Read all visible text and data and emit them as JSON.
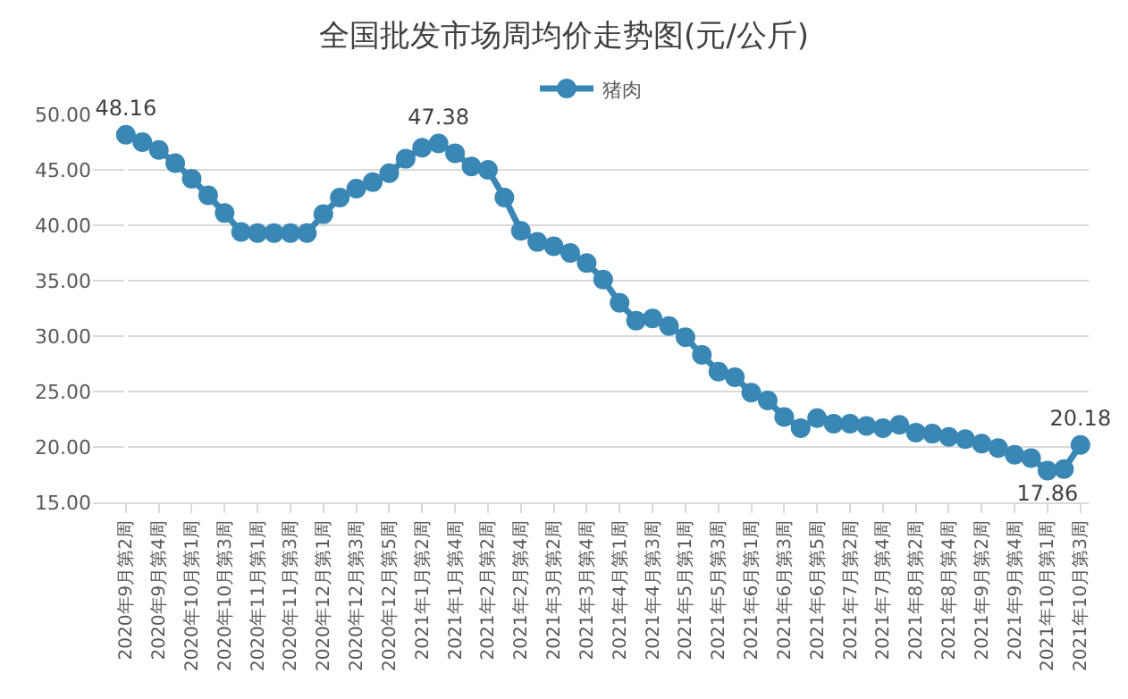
{
  "chart_data": {
    "type": "line",
    "title": "全国批发市场周均价走势图(元/公斤)",
    "categories": [
      "2020年9月第2周",
      null,
      "2020年9月第4周",
      null,
      "2020年10月第1周",
      null,
      "2020年10月第3周",
      null,
      "2020年11月第1周",
      null,
      "2020年11月第3周",
      null,
      "2020年12月第1周",
      null,
      "2020年12月第3周",
      null,
      "2020年12月第5周",
      null,
      "2021年1月第2周",
      null,
      "2021年1月第4周",
      null,
      "2021年2月第2周",
      null,
      "2021年2月第4周",
      null,
      "2021年3月第2周",
      null,
      "2021年3月第4周",
      null,
      "2021年4月第1周",
      null,
      "2021年4月第3周",
      null,
      "2021年5月第1周",
      null,
      "2021年5月第3周",
      null,
      "2021年6月第1周",
      null,
      "2021年6月第3周",
      null,
      "2021年6月第5周",
      null,
      "2021年7月第2周",
      null,
      "2021年7月第4周",
      null,
      "2021年8月第2周",
      null,
      "2021年8月第4周",
      null,
      "2021年9月第2周",
      null,
      "2021年9月第4周",
      null,
      "2021年10月第1周",
      null,
      "2021年10月第3周"
    ],
    "series": [
      {
        "name": "猪肉",
        "color": "#3a87b5",
        "values": [
          48.16,
          47.5,
          46.8,
          45.6,
          44.2,
          42.7,
          41.1,
          39.4,
          39.3,
          39.3,
          39.3,
          39.3,
          41.0,
          42.5,
          43.3,
          43.9,
          44.7,
          46.0,
          47.0,
          47.38,
          46.5,
          45.3,
          45.0,
          42.5,
          39.5,
          38.5,
          38.1,
          37.5,
          36.6,
          35.1,
          33.0,
          31.4,
          31.6,
          30.9,
          29.9,
          28.3,
          26.8,
          26.3,
          24.9,
          24.2,
          22.7,
          21.7,
          22.6,
          22.1,
          22.1,
          21.9,
          21.7,
          22.0,
          21.3,
          21.2,
          20.9,
          20.7,
          20.3,
          19.9,
          19.3,
          19.0,
          17.86,
          18.0,
          20.18
        ],
        "value_labels": [
          "48.16",
          null,
          null,
          null,
          null,
          null,
          null,
          null,
          null,
          null,
          null,
          null,
          null,
          null,
          null,
          null,
          null,
          null,
          null,
          "47.38",
          null,
          null,
          null,
          null,
          null,
          null,
          null,
          null,
          null,
          null,
          null,
          null,
          null,
          null,
          null,
          null,
          null,
          null,
          null,
          null,
          null,
          null,
          null,
          null,
          null,
          null,
          null,
          null,
          null,
          null,
          null,
          null,
          null,
          null,
          null,
          null,
          "17.86",
          null,
          "20.18"
        ]
      }
    ],
    "ylim": [
      15,
      50
    ],
    "yticks": [
      {
        "value": 15,
        "label": "15.00"
      },
      {
        "value": 20,
        "label": "20.00"
      },
      {
        "value": 25,
        "label": "25.00"
      },
      {
        "value": 30,
        "label": "30.00"
      },
      {
        "value": 35,
        "label": "35.00"
      },
      {
        "value": 40,
        "label": "40.00"
      },
      {
        "value": 45,
        "label": "45.00"
      },
      {
        "value": 50,
        "label": "50.00"
      }
    ],
    "grid": "y",
    "legend": "top",
    "marker": "circle",
    "line_style": "solid"
  }
}
